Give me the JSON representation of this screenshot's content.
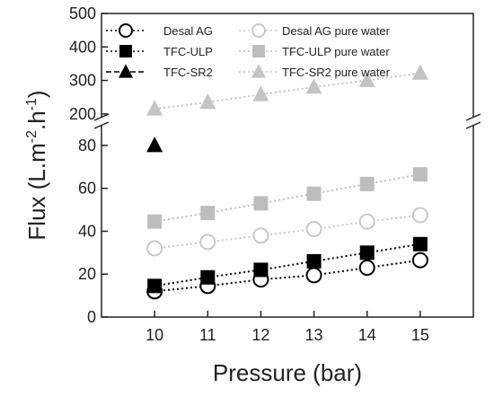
{
  "chart_data": {
    "type": "scatter",
    "xlabel": "Pressure (bar)",
    "ylabel": "Flux (L.m-2.h-1)",
    "ylabel_parts": {
      "base": "Flux (L.m",
      "sup1": "-2",
      "mid": ".h",
      "sup2": "-1",
      "end": ")"
    },
    "x_ticks": [
      10,
      11,
      12,
      13,
      14,
      15
    ],
    "y_ticks_lower": [
      0,
      20,
      40,
      60,
      80
    ],
    "y_ticks_upper": [
      200,
      300,
      400,
      500
    ],
    "xlim": [
      9,
      16
    ],
    "ylim_lower": [
      0,
      90
    ],
    "ylim_upper": [
      170,
      500
    ],
    "axis_break": true,
    "legend_position": "top-left",
    "series": [
      {
        "name": "Desal AG",
        "marker": "circle-open",
        "color": "#000000",
        "line": "dotted",
        "x": [
          10,
          11,
          12,
          13,
          14,
          15
        ],
        "y": [
          12,
          14.5,
          17.5,
          19.5,
          23,
          26.5
        ]
      },
      {
        "name": "TFC-ULP",
        "marker": "square",
        "color": "#000000",
        "line": "dotted",
        "x": [
          10,
          11,
          12,
          13,
          14,
          15
        ],
        "y": [
          14.5,
          18.5,
          22,
          26,
          30,
          34
        ]
      },
      {
        "name": "TFC-SR2",
        "marker": "triangle",
        "color": "#000000",
        "line": "dashed",
        "x": [
          10
        ],
        "y": [
          80
        ]
      },
      {
        "name": "Desal AG pure water",
        "marker": "circle-open",
        "color": "#c9c9c9",
        "line": "dotted",
        "x": [
          10,
          11,
          12,
          13,
          14,
          15
        ],
        "y": [
          32,
          35,
          38,
          41,
          44.5,
          47.5
        ]
      },
      {
        "name": "TFC-ULP pure water",
        "marker": "square",
        "color": "#bdbdbd",
        "line": "dotted",
        "x": [
          10,
          11,
          12,
          13,
          14,
          15
        ],
        "y": [
          44.5,
          48.5,
          53,
          57.5,
          62,
          66.5
        ]
      },
      {
        "name": "TFC-SR2 pure water",
        "marker": "triangle",
        "color": "#c4c4c4",
        "line": "dotted",
        "x": [
          10,
          11,
          12,
          13,
          14,
          15
        ],
        "y": [
          215,
          235,
          258,
          280,
          300,
          322
        ]
      }
    ]
  }
}
